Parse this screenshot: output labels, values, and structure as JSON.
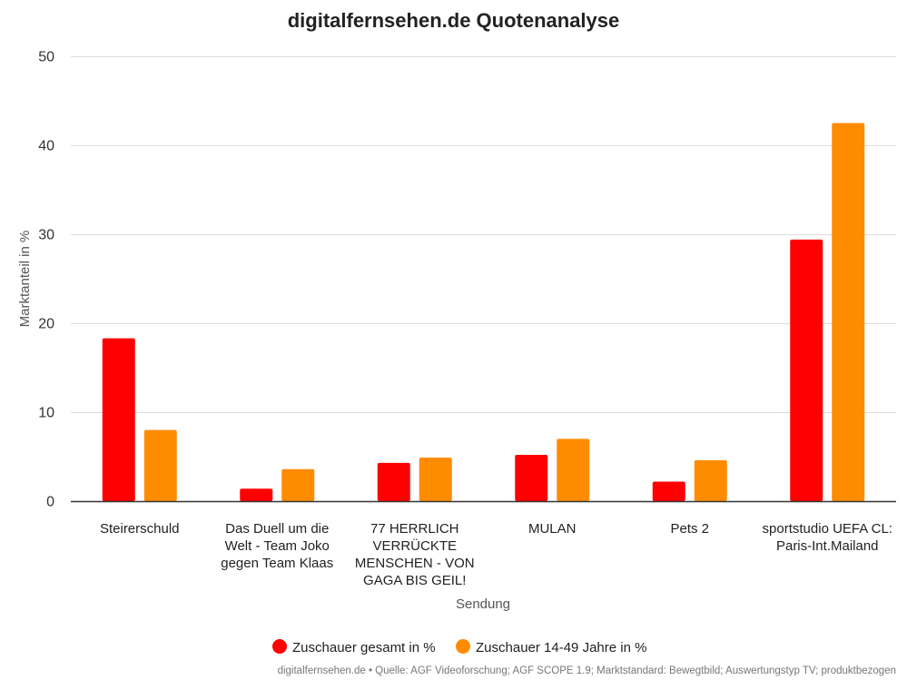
{
  "chart_data": {
    "type": "bar",
    "title": "digitalfernsehen.de Quotenanalyse",
    "xlabel": "Sendung",
    "ylabel": "Marktanteil in %",
    "ylim": [
      0,
      50
    ],
    "yticks": [
      0,
      10,
      20,
      30,
      40,
      50
    ],
    "grid": true,
    "legend_position": "bottom",
    "categories": [
      [
        "Steirerschuld"
      ],
      [
        "Das Duell um die",
        "Welt - Team Joko",
        "gegen Team Klaas"
      ],
      [
        "77 HERRLICH",
        "VERRÜCKTE",
        "MENSCHEN - VON",
        "GAGA BIS GEIL!"
      ],
      [
        "MULAN"
      ],
      [
        "Pets 2"
      ],
      [
        "sportstudio UEFA CL:",
        "Paris-Int.Mailand"
      ]
    ],
    "series": [
      {
        "name": "Zuschauer gesamt in %",
        "color": "#ff0000",
        "values": [
          18.3,
          1.4,
          4.3,
          5.2,
          2.2,
          29.4
        ]
      },
      {
        "name": "Zuschauer 14-49 Jahre in %",
        "color": "#ff8c00",
        "values": [
          8.0,
          3.6,
          4.9,
          7.0,
          4.6,
          42.5
        ]
      }
    ],
    "source": "digitalfernsehen.de • Quelle: AGF Videoforschung; AGF SCOPE 1.9; Marktstandard: Bewegtbild; Auswertungstyp TV; produktbezogen"
  }
}
